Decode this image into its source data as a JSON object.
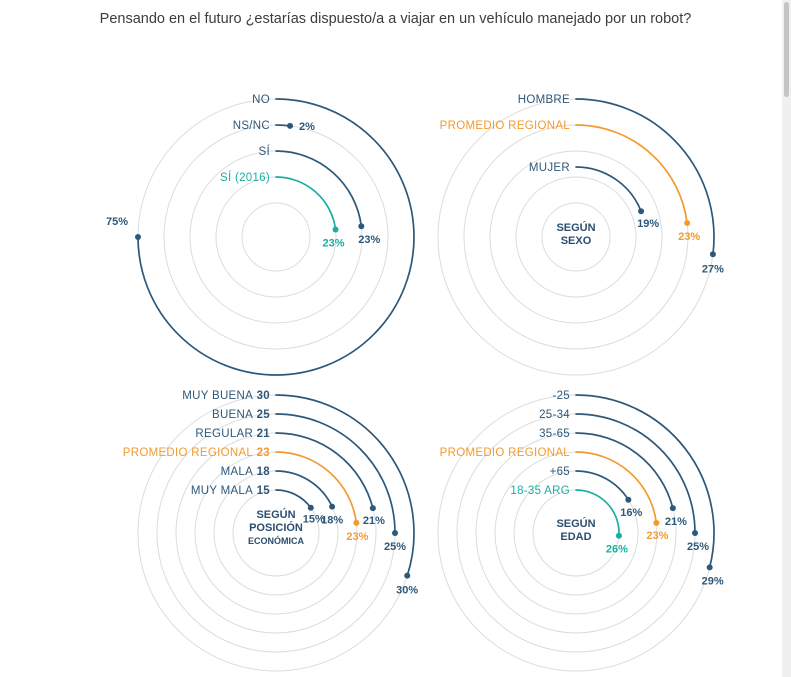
{
  "title": "Pensando en el futuro ¿estarías dispuesto/a a viajar en un vehículo manejado por un robot?",
  "colors": {
    "series": "#2e5879",
    "regional": "#f39a2d",
    "arg": "#1aafa1",
    "ring": "#dcdcdc"
  },
  "chart_data": [
    {
      "type": "radial-bar",
      "center_label": [],
      "items": [
        {
          "label": "NO",
          "label_value": "",
          "value": 75,
          "value_text": "75%",
          "color": "series"
        },
        {
          "label": "NS/NC",
          "label_value": "",
          "value": 2,
          "value_text": "2%",
          "color": "series"
        },
        {
          "label": "SÍ",
          "label_value": "",
          "value": 23,
          "value_text": "23%",
          "color": "series"
        },
        {
          "label": "SÍ (2016)",
          "label_value": "",
          "value": 23,
          "value_text": "23%",
          "color": "arg"
        }
      ]
    },
    {
      "type": "radial-bar",
      "center_label": [
        "SEGÚN",
        "SEXO"
      ],
      "items": [
        {
          "label": "HOMBRE",
          "label_value": "",
          "value": 27,
          "value_text": "27%",
          "color": "series"
        },
        {
          "label": "PROMEDIO REGIONAL",
          "label_value": "",
          "value": 23,
          "value_text": "23%",
          "color": "regional"
        },
        {
          "label": "MUJER",
          "label_value": "",
          "value": 19,
          "value_text": "19%",
          "color": "series"
        }
      ]
    },
    {
      "type": "radial-bar",
      "center_label": [
        "SEGÚN",
        "POSICIÓN",
        "ECONÓMICA"
      ],
      "items": [
        {
          "label": "MUY BUENA",
          "label_value": "30",
          "value": 30,
          "value_text": "30%",
          "color": "series"
        },
        {
          "label": "BUENA",
          "label_value": "25",
          "value": 25,
          "value_text": "25%",
          "color": "series"
        },
        {
          "label": "REGULAR",
          "label_value": "21",
          "value": 21,
          "value_text": "21%",
          "color": "series"
        },
        {
          "label": "PROMEDIO REGIONAL",
          "label_value": "23",
          "value": 23,
          "value_text": "23%",
          "color": "regional"
        },
        {
          "label": "MALA",
          "label_value": "18",
          "value": 18,
          "value_text": "18%",
          "color": "series"
        },
        {
          "label": "MUY MALA",
          "label_value": "15",
          "value": 15,
          "value_text": "15%",
          "color": "series"
        }
      ]
    },
    {
      "type": "radial-bar",
      "center_label": [
        "SEGÚN",
        "EDAD"
      ],
      "items": [
        {
          "label": "-25",
          "label_value": "",
          "value": 29,
          "value_text": "29%",
          "color": "series"
        },
        {
          "label": "25-34",
          "label_value": "",
          "value": 25,
          "value_text": "25%",
          "color": "series"
        },
        {
          "label": "35-65",
          "label_value": "",
          "value": 21,
          "value_text": "21%",
          "color": "series"
        },
        {
          "label": "PROMEDIO REGIONAL",
          "label_value": "",
          "value": 23,
          "value_text": "23%",
          "color": "regional"
        },
        {
          "label": "+65",
          "label_value": "",
          "value": 16,
          "value_text": "16%",
          "color": "series"
        },
        {
          "label": "18-35 ARG",
          "label_value": "",
          "value": 26,
          "value_text": "26%",
          "color": "arg"
        }
      ]
    }
  ]
}
